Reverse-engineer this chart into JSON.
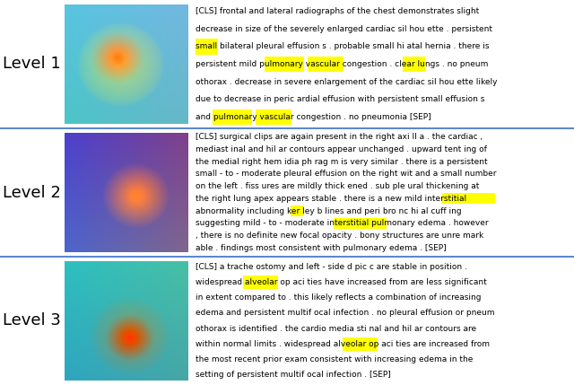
{
  "rows": [
    {
      "label": "Level 1",
      "text_lines": [
        {
          "text": "[CLS] frontal and lateral radiographs of the chest demonstrates slight",
          "hl": []
        },
        {
          "text": "decrease in size of the severely enlarged cardiac sil hou ette . persistent",
          "hl": []
        },
        {
          "text": "small bilateral pleural effusion s . probable small hi atal hernia . there is",
          "hl": [
            {
              "word": "small",
              "col": "#ffff00"
            }
          ]
        },
        {
          "text": "persistent mild pulmonary vascular congestion . clear lungs . no pneum",
          "hl": [
            {
              "word": "pulmonary",
              "col": "#ffff00"
            },
            {
              "word": "vascular",
              "col": "#ffff00"
            },
            {
              "word": "clear",
              "col": "#ffff00"
            }
          ]
        },
        {
          "text": "othorax . decrease in severe enlargement of the cardiac sil hou ette likely",
          "hl": []
        },
        {
          "text": "due to decrease in peric ardial effusion with persistent small effusion s",
          "hl": []
        },
        {
          "text": "and pulmonary vascular congestion . no pneumonia [SEP]",
          "hl": [
            {
              "word": "pulmonary",
              "col": "#ffff00"
            },
            {
              "word": "vascular",
              "col": "#ffff00"
            }
          ]
        }
      ]
    },
    {
      "label": "Level 2",
      "text_lines": [
        {
          "text": "[CLS] surgical clips are again present in the right axi ll a . the cardiac ,",
          "hl": []
        },
        {
          "text": "mediast inal and hil ar contours appear unchanged . upward tent ing of",
          "hl": []
        },
        {
          "text": "the medial right hem idia ph rag m is very similar . there is a persistent",
          "hl": []
        },
        {
          "text": "small - to - moderate pleural effusion on the right wit and a small number",
          "hl": []
        },
        {
          "text": "on the left . fiss ures are mildly thick ened . sub ple ural thickening at",
          "hl": []
        },
        {
          "text": "the right lung apex appears stable . there is a new mild interstitial",
          "hl": [
            {
              "word": "interstitial",
              "col": "#ffff00"
            }
          ]
        },
        {
          "text": "abnormality including ker ley b lines and peri bro nc hi al cuff ing",
          "hl": [
            {
              "word": "ker",
              "col": "#ffff00"
            }
          ]
        },
        {
          "text": "suggesting mild - to - moderate interstitial pulmonary edema . however",
          "hl": [
            {
              "word": "interstitial",
              "col": "#ffff00"
            }
          ]
        },
        {
          "text": ", there is no definite new focal opacity . bony structures are unre mark",
          "hl": []
        },
        {
          "text": "able . findings most consistent with pulmonary edema . [SEP]",
          "hl": []
        }
      ]
    },
    {
      "label": "Level 3",
      "text_lines": [
        {
          "text": "[CLS] a trache ostomy and left - side d pic c are stable in position .",
          "hl": []
        },
        {
          "text": "widespread alveolar op aci ties have increased from are less significant",
          "hl": [
            {
              "word": "alveolar",
              "col": "#ffff00"
            }
          ]
        },
        {
          "text": "in extent compared to . this likely reflects a combination of increasing",
          "hl": []
        },
        {
          "text": "edema and persistent multif ocal infection . no pleural effusion or pneum",
          "hl": []
        },
        {
          "text": "othorax is identified . the cardio media sti nal and hil ar contours are",
          "hl": []
        },
        {
          "text": "within normal limits . widespread alveolar op aci ties are increased from",
          "hl": [
            {
              "word": "alveolar",
              "col": "#ffff00"
            }
          ]
        },
        {
          "text": "the most recent prior exam consistent with increasing edema in the",
          "hl": []
        },
        {
          "text": "setting of persistent multif ocal infection . [SEP]",
          "hl": []
        }
      ]
    }
  ],
  "divider_color": "#3a6fca",
  "label_fontsize": 13,
  "text_fontsize": 6.5,
  "bg_color": "#ffffff",
  "highlight_color": "#ffff00"
}
